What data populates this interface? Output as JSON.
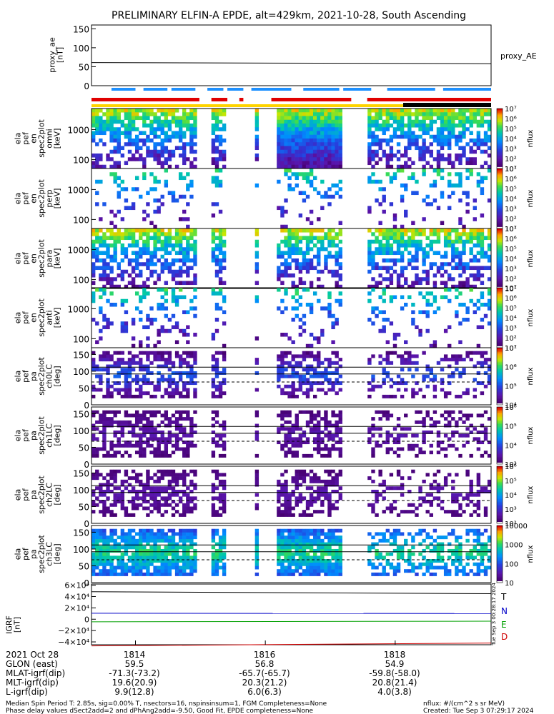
{
  "header": {
    "title": "PRELIMINARY ELFIN-A EPDE, alt=429km, 2021-10-28, South Ascending"
  },
  "chart_data": [
    {
      "id": "proxy_ae",
      "type": "line",
      "ylabel": "proxy_ae\n[nT]",
      "series_label": "proxy_AE",
      "ylim": [
        0,
        160
      ],
      "yticks": [
        "150",
        "100",
        "50",
        "0"
      ],
      "ytick_values": [
        150,
        100,
        50,
        0
      ],
      "x": [
        0,
        1
      ],
      "values": [
        61,
        58
      ]
    },
    {
      "id": "bars",
      "type": "bar",
      "note_colors": {
        "blue": "#1e90ff",
        "red": "#e00000",
        "yellow": "#ffd400",
        "black": "#000000"
      },
      "blue_segments": [
        [
          0.05,
          0.11
        ],
        [
          0.13,
          0.19
        ],
        [
          0.2,
          0.26
        ],
        [
          0.29,
          0.33
        ],
        [
          0.34,
          0.38
        ],
        [
          0.4,
          0.5
        ],
        [
          0.53,
          0.62
        ],
        [
          0.63,
          0.7
        ],
        [
          0.74,
          0.86
        ],
        [
          0.88,
          1.0
        ]
      ],
      "red_segments": [
        [
          0.0,
          0.27
        ],
        [
          0.3,
          0.34
        ],
        [
          0.37,
          0.38
        ],
        [
          0.45,
          0.65
        ],
        [
          0.69,
          1.0
        ]
      ],
      "yellow_segment": [
        0.0,
        1.0
      ],
      "black_segment": [
        0.78,
        1.0
      ]
    },
    {
      "id": "en_panels",
      "type": "heatmap",
      "panels": [
        {
          "ylabel": "ela\npef\nen\nspec2plot\nomni\n[keV]",
          "yticks": [
            "1000",
            "100"
          ]
        },
        {
          "ylabel": "ela\npef\nen\nspec2plot\nperp\n[keV]",
          "yticks": [
            "1000",
            "100"
          ]
        },
        {
          "ylabel": "ela\npef\nen\nspec2plot\npara\n[keV]",
          "yticks": [
            "1000",
            "100"
          ]
        },
        {
          "ylabel": "ela\npef\nen\nspec2plot\nanti\n[keV]",
          "yticks": [
            "1000",
            "100"
          ]
        }
      ],
      "colorbar": {
        "label": "nflux",
        "ticks": [
          "10⁷",
          "10⁶",
          "10⁵",
          "10⁴",
          "10³",
          "10²",
          "10¹"
        ]
      }
    },
    {
      "id": "pa_panels",
      "type": "heatmap",
      "panels": [
        {
          "ylabel": "ela\npef\npa\nspec2plot\nch0LC\n[deg]",
          "yticks": [
            "150",
            "100",
            "50",
            "0"
          ],
          "cbar": [
            "10⁷",
            "10⁶",
            "10⁵",
            "10⁴"
          ]
        },
        {
          "ylabel": "ela\npef\npa\nspec2plot\nch1LC\n[deg]",
          "yticks": [
            "150",
            "100",
            "50",
            "0"
          ],
          "cbar": [
            "10⁶",
            "10⁵",
            "10⁴",
            "10³"
          ]
        },
        {
          "ylabel": "ela\npef\npa\nspec2plot\nch2LC\n[deg]",
          "yticks": [
            "150",
            "100",
            "50",
            "0"
          ],
          "cbar": [
            "10⁶",
            "10⁵",
            "10⁴",
            "10³",
            "10²"
          ]
        },
        {
          "ylabel": "ela\npef\npa\nspec2plot\nch3LC\n[deg]",
          "yticks": [
            "150",
            "100",
            "50",
            "0"
          ],
          "cbar": [
            "10000",
            "1000",
            "100",
            "10"
          ]
        }
      ],
      "colorbar_label": "nflux"
    },
    {
      "id": "igrf",
      "type": "line",
      "ylabel": "IGRF\n[nT]",
      "yticks": [
        "6×10⁴",
        "4×10⁴",
        "2×10⁴",
        "0",
        "−2×10⁴",
        "−4×10⁴"
      ],
      "ylim": [
        -45000,
        62000
      ],
      "series": [
        {
          "name": "T",
          "color": "#000000",
          "values": [
            48500,
            45000
          ]
        },
        {
          "name": "N",
          "color": "#0000c8",
          "values": [
            10500,
            10000
          ]
        },
        {
          "name": "E",
          "color": "#00a000",
          "values": [
            -4500,
            -3500
          ]
        },
        {
          "name": "D",
          "color": "#d00000",
          "values": [
            -47000,
            -42000
          ]
        }
      ],
      "timestamp": "Tue Sep  3 00:28:17 2024"
    }
  ],
  "footer": {
    "rows": [
      {
        "label": "2021 Oct 28",
        "c1": "1814",
        "c2": "1816",
        "c3": "1818"
      },
      {
        "label": "GLON (east)",
        "c1": "59.5",
        "c2": "56.8",
        "c3": "54.9"
      },
      {
        "label": "MLAT-igrf(dip)",
        "c1": "-71.3(-73.2)",
        "c2": "-65.7(-65.7)",
        "c3": "-59.8(-58.0)"
      },
      {
        "label": "MLT-igrf(dip)",
        "c1": "19.6(20.9)",
        "c2": "20.3(21.2)",
        "c3": "20.8(21.4)"
      },
      {
        "label": "L-igrf(dip)",
        "c1": "9.9(12.8)",
        "c2": "6.0(6.3)",
        "c3": "4.0(3.8)"
      }
    ],
    "note1": "Median Spin Period T: 2.85s, sig=0.00% T, nsectors=16, nspinsinsum=1, FGM Completeness=None",
    "note2": "Phase delay values dSect2add=2 and dPhAng2add=-9.50, Good Fit, EPDE completeness=None",
    "units": "nflux: #/(cm^2 s sr MeV)",
    "created": "Created: Tue Sep  3 07:29:17 2024"
  }
}
